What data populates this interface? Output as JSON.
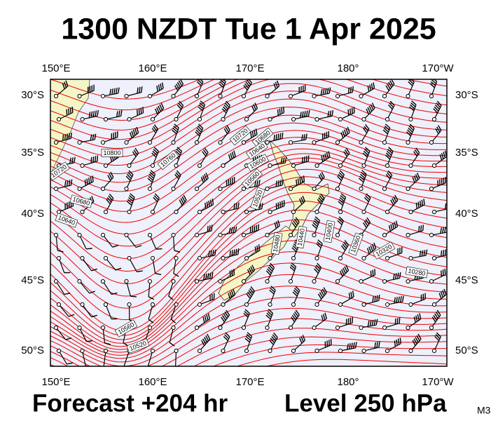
{
  "header": {
    "title": "1300 NZDT Tue 1 Apr 2025"
  },
  "map": {
    "lon_labels": [
      "150°E",
      "160°E",
      "170°E",
      "180°",
      "170°W"
    ],
    "lat_labels": [
      "30°S",
      "35°S",
      "40°S",
      "45°S",
      "50°S"
    ],
    "contour_labels": [
      "10800",
      "10760",
      "10720",
      "10680",
      "10640",
      "10720",
      "10680",
      "10640",
      "10600",
      "10560",
      "10520",
      "10440",
      "10400",
      "10360",
      "10320",
      "10280",
      "10480",
      "10560",
      "10520"
    ]
  },
  "footer": {
    "forecast": "Forecast +204 hr",
    "level": "Level 250 hPa",
    "model": "M3"
  }
}
